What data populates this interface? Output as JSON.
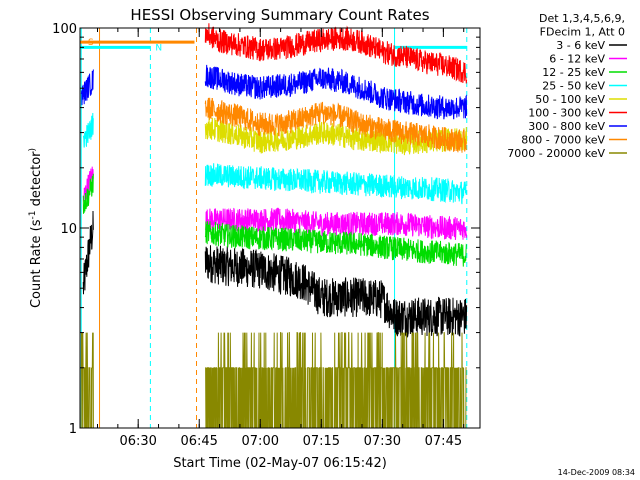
{
  "chart_data": {
    "type": "line",
    "title": "HESSI Observing Summary Count Rates",
    "xlabel": "Start Time (02-May-07 06:15:42)",
    "ylabel_main": "Count Rate (s",
    "ylabel_sup": "-1",
    "ylabel_tail": " detector",
    "ylabel_end": ")",
    "y_scale": "log",
    "ylim": [
      1,
      100
    ],
    "y_ticks": [
      {
        "value": 1,
        "label": "1"
      },
      {
        "value": 10,
        "label": "10"
      },
      {
        "value": 100,
        "label": "100"
      }
    ],
    "xlim": [
      "06:15:42",
      "07:54:00"
    ],
    "x_ticks": [
      {
        "value": "06:30",
        "label": "06:30"
      },
      {
        "value": "06:45",
        "label": "06:45"
      },
      {
        "value": "07:00",
        "label": "07:00"
      },
      {
        "value": "07:15",
        "label": "07:15"
      },
      {
        "value": "07:30",
        "label": "07:30"
      },
      {
        "value": "07:45",
        "label": "07:45"
      }
    ],
    "legend": {
      "position": "right",
      "header": [
        "Det 1,3,4,5,6,9,",
        "FDecim 1, Att 0"
      ],
      "entries": [
        {
          "label": "3 - 6 keV",
          "color": "#000000"
        },
        {
          "label": "6 - 12 keV",
          "color": "#ff00ff"
        },
        {
          "label": "12 - 25 keV",
          "color": "#00dd00"
        },
        {
          "label": "25 - 50 keV",
          "color": "#00ffff"
        },
        {
          "label": "50 - 100 keV",
          "color": "#dddd00"
        },
        {
          "label": "100 - 300 keV",
          "color": "#ff0000"
        },
        {
          "label": "300 - 800 keV",
          "color": "#0000ff"
        },
        {
          "label": "800 - 7000 keV",
          "color": "#ff8800"
        },
        {
          "label": "7000 - 20000 keV",
          "color": "#888800"
        }
      ]
    },
    "flags": [
      {
        "label": "S",
        "color": "#ff8800",
        "start": "06:15:42",
        "end": "06:43:50",
        "level": 85
      },
      {
        "label": "N",
        "color": "#00ffff",
        "start": "06:15:42",
        "end": "06:33:00",
        "level": 80
      },
      {
        "label": "",
        "color": "#00ffff",
        "start": "07:33:00",
        "end": "07:50:45",
        "level": 80
      }
    ],
    "markers": [
      {
        "time": "06:16:00",
        "color": "#00ffff",
        "style": "solid"
      },
      {
        "time": "06:20:30",
        "color": "#ff8800",
        "style": "solid"
      },
      {
        "time": "06:33:00",
        "color": "#00ffff",
        "style": "dashed"
      },
      {
        "time": "06:44:20",
        "color": "#ff8800",
        "style": "dashed"
      },
      {
        "time": "07:33:00",
        "color": "#00ffff",
        "style": "solid"
      },
      {
        "time": "07:50:45",
        "color": "#00ffff",
        "style": "dashed"
      }
    ],
    "segments": [
      {
        "start": "06:15:42",
        "end": "06:19:00"
      },
      {
        "start": "06:46:30",
        "end": "07:50:45"
      }
    ],
    "series": [
      {
        "name": "3 - 6 keV",
        "color": "#000000",
        "x": [
          "06:16:30",
          "06:18:00",
          "06:19:00",
          "06:46:30",
          "06:50:00",
          "07:00:00",
          "07:10:00",
          "07:15:00",
          "07:25:00",
          "07:30:00",
          "07:33:00",
          "07:40:00",
          "07:50:45"
        ],
        "y": [
          5,
          8,
          10,
          6.8,
          6.5,
          6.2,
          5.5,
          4.5,
          4.5,
          4.4,
          3.6,
          3.6,
          3.6
        ]
      },
      {
        "name": "6 - 12 keV",
        "color": "#ff00ff",
        "x": [
          "06:16:30",
          "06:18:00",
          "06:19:00",
          "06:46:30",
          "06:55:00",
          "07:05:00",
          "07:15:00",
          "07:25:00",
          "07:35:00",
          "07:45:00",
          "07:50:45"
        ],
        "y": [
          14,
          17,
          19,
          11,
          11,
          11,
          10.5,
          10.5,
          10.5,
          10,
          10
        ]
      },
      {
        "name": "12 - 25 keV",
        "color": "#00dd00",
        "x": [
          "06:16:30",
          "06:18:00",
          "06:19:00",
          "06:46:30",
          "06:55:00",
          "07:05:00",
          "07:15:00",
          "07:25:00",
          "07:35:00",
          "07:45:00",
          "07:50:45"
        ],
        "y": [
          13,
          15,
          17,
          9.5,
          9,
          8.8,
          8.5,
          8.3,
          7.8,
          7.5,
          7.3
        ]
      },
      {
        "name": "25 - 50 keV",
        "color": "#00ffff",
        "x": [
          "06:16:30",
          "06:18:00",
          "06:19:00",
          "06:46:30",
          "06:55:00",
          "07:05:00",
          "07:15:00",
          "07:25:00",
          "07:35:00",
          "07:45:00",
          "07:50:45"
        ],
        "y": [
          28,
          30,
          34,
          18.5,
          18,
          17.5,
          17,
          16.5,
          16,
          15.5,
          15
        ]
      },
      {
        "name": "50 - 100 keV",
        "color": "#dddd00",
        "x": [
          "06:46:30",
          "06:55:00",
          "07:00:00",
          "07:10:00",
          "07:15:00",
          "07:20:00",
          "07:25:00",
          "07:30:00",
          "07:35:00",
          "07:40:00",
          "07:45:00",
          "07:50:45"
        ],
        "y": [
          32,
          29,
          27,
          28.5,
          30,
          29,
          27.5,
          27.5,
          26.5,
          27,
          27.5,
          28
        ]
      },
      {
        "name": "100 - 300 keV",
        "color": "#ff0000",
        "x": [
          "06:46:30",
          "06:50:00",
          "06:55:00",
          "07:00:00",
          "07:05:00",
          "07:10:00",
          "07:15:00",
          "07:20:00",
          "07:25:00",
          "07:30:00",
          "07:35:00",
          "07:40:00",
          "07:45:00",
          "07:50:45"
        ],
        "y": [
          94,
          86,
          82,
          78,
          79,
          83,
          87,
          89,
          85,
          76,
          72,
          68,
          65,
          60
        ]
      },
      {
        "name": "300 - 800 keV",
        "color": "#0000ff",
        "x": [
          "06:16:00",
          "06:17:30",
          "06:19:00",
          "06:46:30",
          "06:55:00",
          "07:00:00",
          "07:10:00",
          "07:15:00",
          "07:20:00",
          "07:25:00",
          "07:30:00",
          "07:35:00",
          "07:40:00",
          "07:45:00",
          "07:50:45"
        ],
        "y": [
          45,
          50,
          55,
          58,
          52,
          50,
          53,
          56,
          54,
          50,
          45,
          43,
          41,
          40,
          40
        ]
      },
      {
        "name": "800 - 7000 keV",
        "color": "#ff8800",
        "x": [
          "06:46:30",
          "06:55:00",
          "07:00:00",
          "07:05:00",
          "07:10:00",
          "07:15:00",
          "07:20:00",
          "07:25:00",
          "07:30:00",
          "07:35:00",
          "07:40:00",
          "07:45:00",
          "07:50:45"
        ],
        "y": [
          40,
          36,
          33,
          33,
          35,
          38,
          36,
          33,
          31,
          30,
          29,
          28,
          27
        ]
      },
      {
        "name": "7000 - 20000 keV",
        "color": "#888800",
        "x": [
          "06:16:00",
          "06:19:00",
          "06:46:30",
          "07:00:00",
          "07:15:00",
          "07:30:00",
          "07:50:45"
        ],
        "y": [
          2,
          2,
          2,
          2,
          2,
          2,
          2
        ]
      }
    ]
  },
  "footer": {
    "timestamp": "14-Dec-2009 08:34"
  }
}
